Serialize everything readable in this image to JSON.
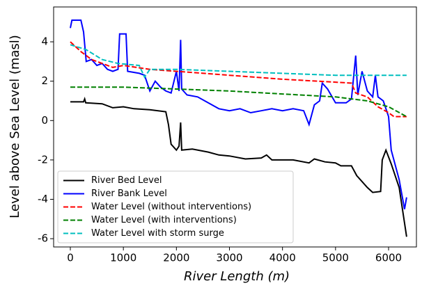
{
  "chart_data": {
    "type": "line",
    "x_label": "River Length (m)",
    "y_label": "Level above Sea Level (masl)",
    "xlim": [
      -315,
      6525
    ],
    "ylim": [
      -6.42,
      5.77
    ],
    "xticks": [
      0,
      1000,
      2000,
      3000,
      4000,
      5000,
      6000
    ],
    "yticks": [
      -6,
      -4,
      -2,
      0,
      2,
      4
    ],
    "grid": false,
    "legend": "lower left",
    "series": [
      {
        "name": "River Bed Level",
        "color": "#000000",
        "dash": "solid",
        "x": [
          0,
          250,
          270,
          290,
          600,
          800,
          1000,
          1200,
          1500,
          1800,
          1850,
          1900,
          2000,
          2050,
          2080,
          2100,
          2300,
          2600,
          2800,
          3000,
          3300,
          3600,
          3700,
          3800,
          4200,
          4500,
          4600,
          4800,
          5000,
          5100,
          5300,
          5400,
          5600,
          5700,
          5850,
          5880,
          5950,
          6050,
          6200,
          6340
        ],
        "values": [
          0.95,
          0.95,
          1.1,
          0.9,
          0.85,
          0.65,
          0.7,
          0.6,
          0.55,
          0.45,
          -0.2,
          -1.2,
          -1.5,
          -1.3,
          -0.1,
          -1.5,
          -1.45,
          -1.6,
          -1.75,
          -1.8,
          -1.95,
          -1.9,
          -1.75,
          -2.0,
          -2.0,
          -2.15,
          -1.95,
          -2.1,
          -2.15,
          -2.3,
          -2.3,
          -2.8,
          -3.4,
          -3.65,
          -3.6,
          -2.0,
          -1.5,
          -2.2,
          -3.4,
          -5.9
        ]
      },
      {
        "name": "River Bank Level",
        "color": "#0000ff",
        "dash": "solid",
        "x": [
          0,
          30,
          200,
          250,
          300,
          400,
          500,
          600,
          700,
          800,
          900,
          930,
          1050,
          1080,
          1300,
          1400,
          1500,
          1600,
          1700,
          1800,
          1900,
          2000,
          2050,
          2080,
          2100,
          2200,
          2400,
          2600,
          2800,
          3000,
          3200,
          3400,
          3600,
          3800,
          4000,
          4200,
          4400,
          4500,
          4600,
          4700,
          4750,
          4850,
          5000,
          5200,
          5300,
          5380,
          5420,
          5500,
          5600,
          5700,
          5750,
          5800,
          5900,
          6000,
          6050,
          6200,
          6300,
          6340
        ],
        "values": [
          4.7,
          5.1,
          5.1,
          4.5,
          3.0,
          3.1,
          2.8,
          2.9,
          2.6,
          2.5,
          2.6,
          4.4,
          4.4,
          2.5,
          2.4,
          2.3,
          1.5,
          2.0,
          1.7,
          1.5,
          1.4,
          2.5,
          1.5,
          4.1,
          1.6,
          1.3,
          1.2,
          0.9,
          0.6,
          0.5,
          0.6,
          0.4,
          0.5,
          0.6,
          0.5,
          0.6,
          0.5,
          -0.2,
          0.8,
          1.0,
          1.9,
          1.6,
          0.9,
          0.9,
          1.1,
          3.3,
          1.3,
          2.5,
          1.5,
          1.2,
          2.3,
          1.2,
          1.0,
          0.2,
          -1.5,
          -3.0,
          -4.5,
          -3.9
        ]
      },
      {
        "name": "Water Level (without interventions)",
        "color": "#ff0000",
        "dash": "dashed",
        "x": [
          0,
          200,
          400,
          600,
          800,
          1000,
          1500,
          2000,
          3000,
          4000,
          5000,
          5300,
          5380,
          5600,
          5800,
          6000,
          6100,
          6340
        ],
        "values": [
          4.0,
          3.5,
          3.1,
          2.9,
          2.7,
          2.8,
          2.6,
          2.5,
          2.3,
          2.1,
          1.95,
          1.9,
          1.4,
          1.2,
          0.7,
          0.4,
          0.2,
          0.2
        ]
      },
      {
        "name": "Water Level (with interventions)",
        "color": "#008000",
        "dash": "dashed",
        "x": [
          0,
          1000,
          2000,
          3000,
          4000,
          5000,
          5600,
          6000,
          6340
        ],
        "values": [
          1.7,
          1.7,
          1.6,
          1.5,
          1.35,
          1.2,
          1.0,
          0.7,
          0.2
        ]
      },
      {
        "name": "Water Level with storm surge",
        "color": "#00bfbf",
        "dash": "dashed",
        "x": [
          0,
          300,
          600,
          900,
          1300,
          1400,
          1500,
          2000,
          3000,
          4000,
          5000,
          5400,
          6340
        ],
        "values": [
          3.85,
          3.6,
          3.1,
          2.9,
          2.8,
          2.2,
          2.6,
          2.6,
          2.5,
          2.4,
          2.3,
          2.3,
          2.3
        ]
      }
    ]
  }
}
